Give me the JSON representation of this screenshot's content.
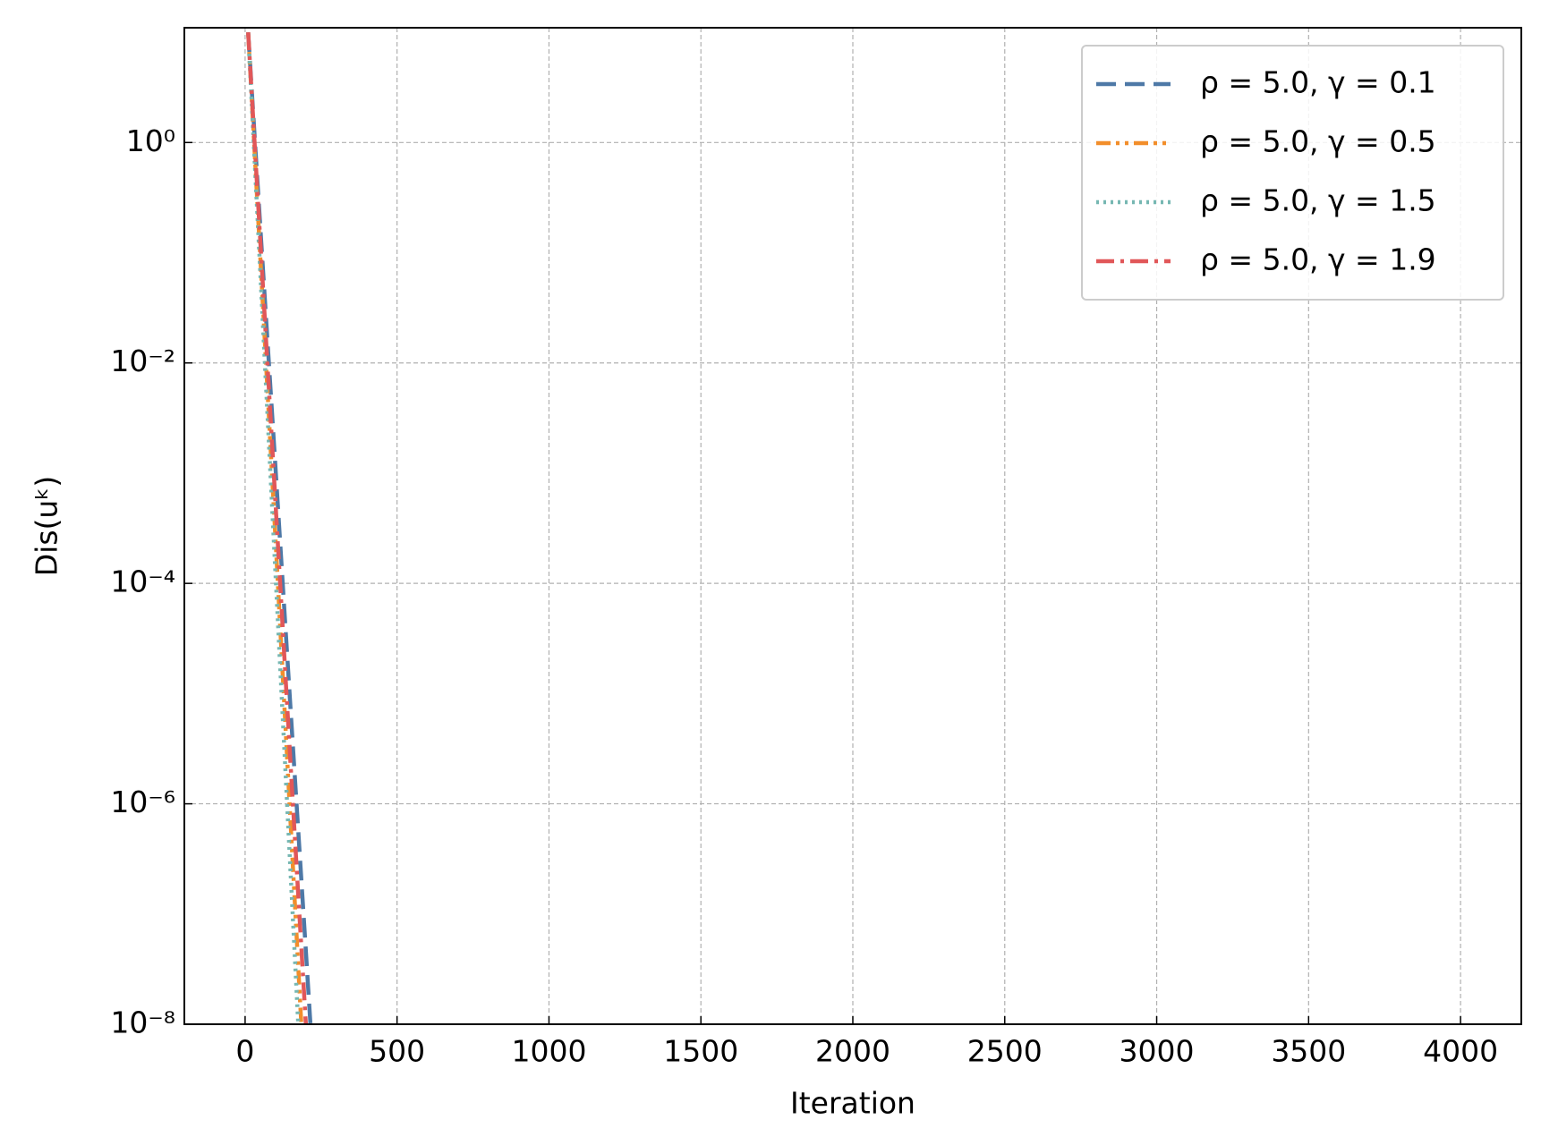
{
  "chart_data": {
    "type": "line",
    "xlabel": "Iteration",
    "ylabel": "Dis(uᵏ)",
    "xlim": [
      -200,
      4200
    ],
    "xticks": [
      0,
      500,
      1000,
      1500,
      2000,
      2500,
      3000,
      3500,
      4000
    ],
    "ylim": [
      1e-08,
      11
    ],
    "yscale": "log",
    "yticks": [
      {
        "value": 1,
        "label": "10⁰"
      },
      {
        "value": 0.01,
        "label": "10⁻²"
      },
      {
        "value": 0.0001,
        "label": "10⁻⁴"
      },
      {
        "value": 1e-06,
        "label": "10⁻⁶"
      },
      {
        "value": 1e-08,
        "label": "10⁻⁸"
      }
    ],
    "grid": true,
    "legend_loc": "upper right",
    "series": [
      {
        "name": "ρ = 5.0,  γ = 0.1",
        "color": "#4e79a7",
        "linestyle": "dashed",
        "x": [
          10,
          50,
          100,
          150,
          200,
          215
        ],
        "values": [
          10,
          0.17,
          0.0011,
          7e-06,
          4.6e-08,
          1e-08
        ]
      },
      {
        "name": "ρ = 5.0,  γ = 0.5",
        "color": "#f28e2b",
        "linestyle": "dashdotdot",
        "x": [
          10,
          50,
          100,
          150,
          185
        ],
        "values": [
          10,
          0.09,
          0.00025,
          6.5e-07,
          1e-08
        ]
      },
      {
        "name": "ρ = 5.0,  γ = 1.5",
        "color": "#76b7b2",
        "linestyle": "dotted",
        "x": [
          10,
          50,
          100,
          150,
          175
        ],
        "values": [
          10,
          0.066,
          0.00012,
          2.3e-07,
          1e-08
        ]
      },
      {
        "name": "ρ = 5.0,  γ = 1.9",
        "color": "#e15759",
        "linestyle": "dashdot",
        "x": [
          10,
          50,
          100,
          150,
          200
        ],
        "values": [
          10,
          0.127,
          0.00053,
          2.2e-06,
          1e-08
        ]
      }
    ]
  }
}
